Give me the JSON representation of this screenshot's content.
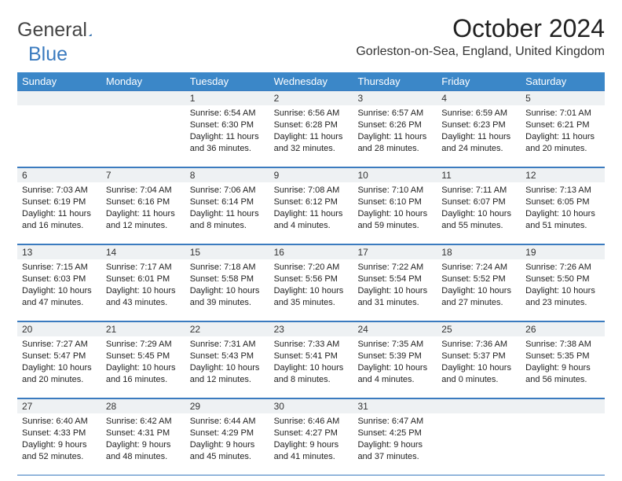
{
  "logo": {
    "text_a": "General",
    "text_b": "Blue"
  },
  "title": "October 2024",
  "subtitle": "Gorleston-on-Sea, England, United Kingdom",
  "colors": {
    "header_bg": "#3b87c8",
    "header_text": "#ffffff",
    "date_row_bg": "#eef1f3",
    "border": "#3b7bbf",
    "text": "#222222"
  },
  "day_labels": [
    "Sunday",
    "Monday",
    "Tuesday",
    "Wednesday",
    "Thursday",
    "Friday",
    "Saturday"
  ],
  "weeks": [
    {
      "dates": [
        "",
        "",
        "1",
        "2",
        "3",
        "4",
        "5"
      ],
      "cells": [
        null,
        null,
        {
          "sunrise": "Sunrise: 6:54 AM",
          "sunset": "Sunset: 6:30 PM",
          "daylight": "Daylight: 11 hours and 36 minutes."
        },
        {
          "sunrise": "Sunrise: 6:56 AM",
          "sunset": "Sunset: 6:28 PM",
          "daylight": "Daylight: 11 hours and 32 minutes."
        },
        {
          "sunrise": "Sunrise: 6:57 AM",
          "sunset": "Sunset: 6:26 PM",
          "daylight": "Daylight: 11 hours and 28 minutes."
        },
        {
          "sunrise": "Sunrise: 6:59 AM",
          "sunset": "Sunset: 6:23 PM",
          "daylight": "Daylight: 11 hours and 24 minutes."
        },
        {
          "sunrise": "Sunrise: 7:01 AM",
          "sunset": "Sunset: 6:21 PM",
          "daylight": "Daylight: 11 hours and 20 minutes."
        }
      ]
    },
    {
      "dates": [
        "6",
        "7",
        "8",
        "9",
        "10",
        "11",
        "12"
      ],
      "cells": [
        {
          "sunrise": "Sunrise: 7:03 AM",
          "sunset": "Sunset: 6:19 PM",
          "daylight": "Daylight: 11 hours and 16 minutes."
        },
        {
          "sunrise": "Sunrise: 7:04 AM",
          "sunset": "Sunset: 6:16 PM",
          "daylight": "Daylight: 11 hours and 12 minutes."
        },
        {
          "sunrise": "Sunrise: 7:06 AM",
          "sunset": "Sunset: 6:14 PM",
          "daylight": "Daylight: 11 hours and 8 minutes."
        },
        {
          "sunrise": "Sunrise: 7:08 AM",
          "sunset": "Sunset: 6:12 PM",
          "daylight": "Daylight: 11 hours and 4 minutes."
        },
        {
          "sunrise": "Sunrise: 7:10 AM",
          "sunset": "Sunset: 6:10 PM",
          "daylight": "Daylight: 10 hours and 59 minutes."
        },
        {
          "sunrise": "Sunrise: 7:11 AM",
          "sunset": "Sunset: 6:07 PM",
          "daylight": "Daylight: 10 hours and 55 minutes."
        },
        {
          "sunrise": "Sunrise: 7:13 AM",
          "sunset": "Sunset: 6:05 PM",
          "daylight": "Daylight: 10 hours and 51 minutes."
        }
      ]
    },
    {
      "dates": [
        "13",
        "14",
        "15",
        "16",
        "17",
        "18",
        "19"
      ],
      "cells": [
        {
          "sunrise": "Sunrise: 7:15 AM",
          "sunset": "Sunset: 6:03 PM",
          "daylight": "Daylight: 10 hours and 47 minutes."
        },
        {
          "sunrise": "Sunrise: 7:17 AM",
          "sunset": "Sunset: 6:01 PM",
          "daylight": "Daylight: 10 hours and 43 minutes."
        },
        {
          "sunrise": "Sunrise: 7:18 AM",
          "sunset": "Sunset: 5:58 PM",
          "daylight": "Daylight: 10 hours and 39 minutes."
        },
        {
          "sunrise": "Sunrise: 7:20 AM",
          "sunset": "Sunset: 5:56 PM",
          "daylight": "Daylight: 10 hours and 35 minutes."
        },
        {
          "sunrise": "Sunrise: 7:22 AM",
          "sunset": "Sunset: 5:54 PM",
          "daylight": "Daylight: 10 hours and 31 minutes."
        },
        {
          "sunrise": "Sunrise: 7:24 AM",
          "sunset": "Sunset: 5:52 PM",
          "daylight": "Daylight: 10 hours and 27 minutes."
        },
        {
          "sunrise": "Sunrise: 7:26 AM",
          "sunset": "Sunset: 5:50 PM",
          "daylight": "Daylight: 10 hours and 23 minutes."
        }
      ]
    },
    {
      "dates": [
        "20",
        "21",
        "22",
        "23",
        "24",
        "25",
        "26"
      ],
      "cells": [
        {
          "sunrise": "Sunrise: 7:27 AM",
          "sunset": "Sunset: 5:47 PM",
          "daylight": "Daylight: 10 hours and 20 minutes."
        },
        {
          "sunrise": "Sunrise: 7:29 AM",
          "sunset": "Sunset: 5:45 PM",
          "daylight": "Daylight: 10 hours and 16 minutes."
        },
        {
          "sunrise": "Sunrise: 7:31 AM",
          "sunset": "Sunset: 5:43 PM",
          "daylight": "Daylight: 10 hours and 12 minutes."
        },
        {
          "sunrise": "Sunrise: 7:33 AM",
          "sunset": "Sunset: 5:41 PM",
          "daylight": "Daylight: 10 hours and 8 minutes."
        },
        {
          "sunrise": "Sunrise: 7:35 AM",
          "sunset": "Sunset: 5:39 PM",
          "daylight": "Daylight: 10 hours and 4 minutes."
        },
        {
          "sunrise": "Sunrise: 7:36 AM",
          "sunset": "Sunset: 5:37 PM",
          "daylight": "Daylight: 10 hours and 0 minutes."
        },
        {
          "sunrise": "Sunrise: 7:38 AM",
          "sunset": "Sunset: 5:35 PM",
          "daylight": "Daylight: 9 hours and 56 minutes."
        }
      ]
    },
    {
      "dates": [
        "27",
        "28",
        "29",
        "30",
        "31",
        "",
        ""
      ],
      "cells": [
        {
          "sunrise": "Sunrise: 6:40 AM",
          "sunset": "Sunset: 4:33 PM",
          "daylight": "Daylight: 9 hours and 52 minutes."
        },
        {
          "sunrise": "Sunrise: 6:42 AM",
          "sunset": "Sunset: 4:31 PM",
          "daylight": "Daylight: 9 hours and 48 minutes."
        },
        {
          "sunrise": "Sunrise: 6:44 AM",
          "sunset": "Sunset: 4:29 PM",
          "daylight": "Daylight: 9 hours and 45 minutes."
        },
        {
          "sunrise": "Sunrise: 6:46 AM",
          "sunset": "Sunset: 4:27 PM",
          "daylight": "Daylight: 9 hours and 41 minutes."
        },
        {
          "sunrise": "Sunrise: 6:47 AM",
          "sunset": "Sunset: 4:25 PM",
          "daylight": "Daylight: 9 hours and 37 minutes."
        },
        null,
        null
      ]
    }
  ]
}
